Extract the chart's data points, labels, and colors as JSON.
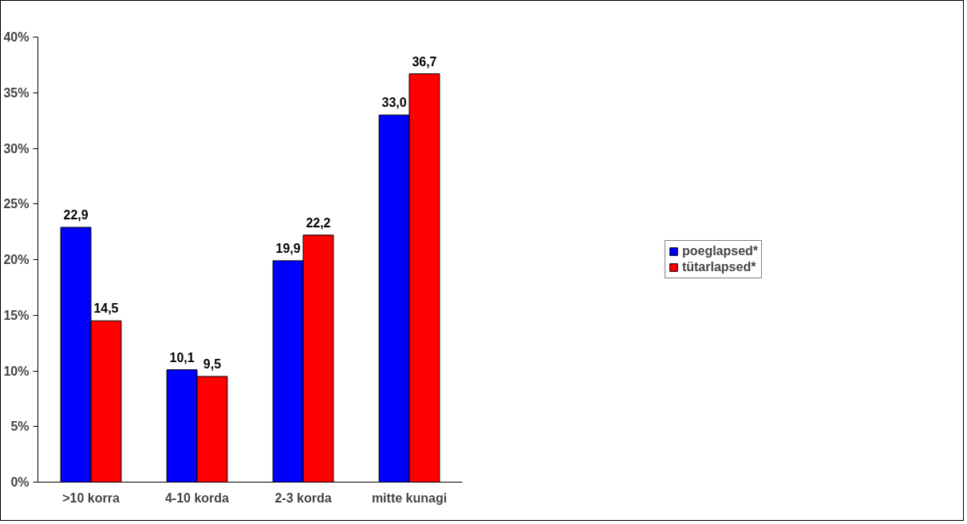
{
  "chart_data": {
    "type": "bar",
    "categories": [
      ">10 korra",
      "4-10 korda",
      "2-3 korda",
      "mitte kunagi"
    ],
    "series": [
      {
        "name": "poeglapsed*",
        "color": "#0000ff",
        "values": [
          22.9,
          10.1,
          19.9,
          33.0
        ],
        "value_labels": [
          "22,9",
          "10,1",
          "19,9",
          "33,0"
        ]
      },
      {
        "name": "tütarlapsed*",
        "color": "#ff0000",
        "values": [
          14.5,
          9.5,
          22.2,
          36.7
        ],
        "value_labels": [
          "14,5",
          "9,5",
          "22,2",
          "36,7"
        ]
      }
    ],
    "ylim": [
      0,
      40
    ],
    "yticks": [
      {
        "value": 0,
        "label": "0%"
      },
      {
        "value": 5,
        "label": "5%"
      },
      {
        "value": 10,
        "label": "10%"
      },
      {
        "value": 15,
        "label": "15%"
      },
      {
        "value": 20,
        "label": "20%"
      },
      {
        "value": 25,
        "label": "25%"
      },
      {
        "value": 30,
        "label": "30%"
      },
      {
        "value": 35,
        "label": "35%"
      },
      {
        "value": 40,
        "label": "40%"
      }
    ],
    "grid": false,
    "legend": "right"
  }
}
